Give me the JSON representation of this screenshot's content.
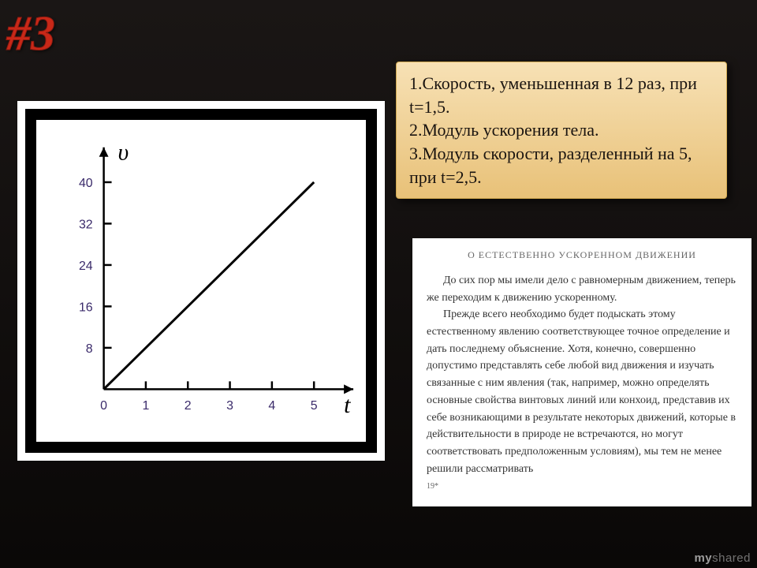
{
  "badge": "#3",
  "task": {
    "line1": "1.Скорость, уменьшенная в 12 раз, при t=1,5.",
    "line2": "2.Модуль ускорения тела.",
    "line3": "3.Модуль скорости, разделенный на 5, при t=2,5."
  },
  "chart": {
    "type": "line",
    "background_color": "#ffffff",
    "axis_color": "#000000",
    "line_color": "#000000",
    "line_width": 3,
    "x_label": "t",
    "y_label": "υ",
    "x_ticks": [
      0,
      1,
      2,
      3,
      4,
      5
    ],
    "y_ticks": [
      8,
      16,
      24,
      32,
      40
    ],
    "xlim": [
      0,
      5.6
    ],
    "ylim": [
      0,
      44
    ],
    "series": {
      "x": [
        0,
        5
      ],
      "y": [
        0,
        40
      ]
    },
    "label_fontsize": 16,
    "tick_color": "#3a2a6a",
    "axis_label_fontsize": 30
  },
  "excerpt": {
    "title": "О ЕСТЕСТВЕННО УСКОРЕННОМ ДВИЖЕНИИ",
    "p1": "До сих пор мы имели дело с равномерным движением, теперь же переходим к движению ускоренному.",
    "p2": "Прежде всего необходимо будет подыскать этому естественному явлению соответствующее точное определение и дать последнему объяснение. Хотя, конечно, совершенно допустимо представлять себе любой вид движения и изучать связанные с ним явления (так, например, можно определять основные свойства винтовых линий или конхоид, представив их себе возникающими в результате некоторых движений, которые в действительности в природе не встречаются, но могут соответствовать предположенным условиям), мы тем не менее решили рассматривать",
    "page": "19*"
  },
  "watermark": {
    "brand": "my",
    "rest": "shared"
  }
}
